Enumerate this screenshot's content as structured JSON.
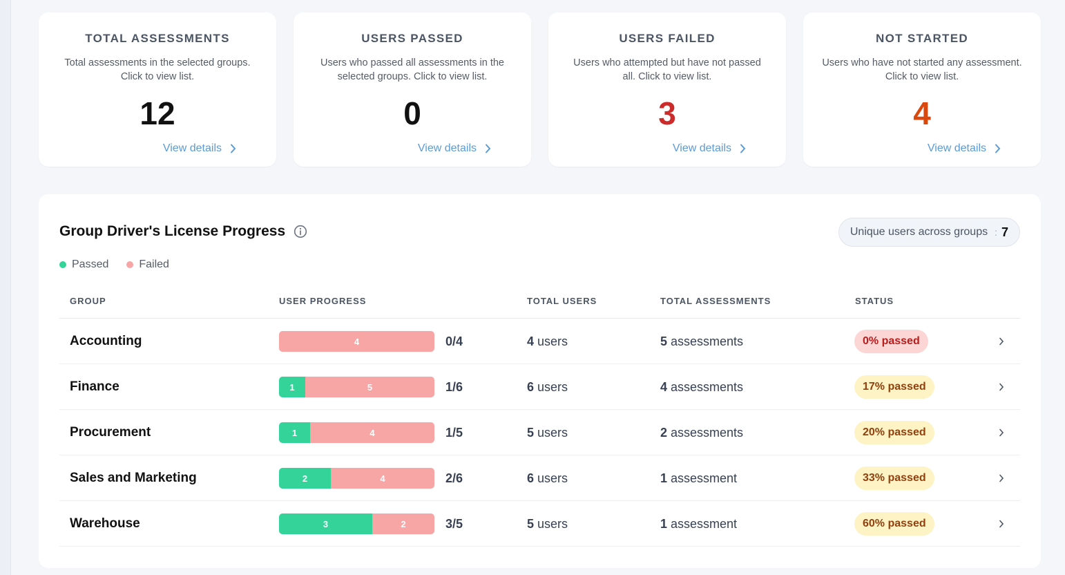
{
  "colors": {
    "accent_link": "#5b9bd5",
    "passed": "#34d399",
    "failed": "#f8a5a5",
    "value_failed": "#cc2b2b",
    "value_not_started": "#d9480f"
  },
  "cards": [
    {
      "title": "TOTAL ASSESSMENTS",
      "desc": "Total assessments in the selected groups. Click to view list.",
      "value": "12",
      "value_color": "#111111",
      "link": "View details"
    },
    {
      "title": "USERS PASSED",
      "desc": "Users who passed all assessments in the selected groups. Click to view list.",
      "value": "0",
      "value_color": "#111111",
      "link": "View details"
    },
    {
      "title": "USERS FAILED",
      "desc": "Users who attempted but have not passed all. Click to view list.",
      "value": "3",
      "value_color": "#cc2b2b",
      "link": "View details"
    },
    {
      "title": "NOT STARTED",
      "desc": "Users who have not started any assessment. Click to view list.",
      "value": "4",
      "value_color": "#d9480f",
      "link": "View details"
    }
  ],
  "panel": {
    "title": "Group Driver's License Progress",
    "info_icon": "info-circle-icon",
    "unique_label": "Unique users across groups",
    "unique_sep": ":",
    "unique_value": "7",
    "legend": [
      {
        "label": "Passed",
        "color": "#34d399"
      },
      {
        "label": "Failed",
        "color": "#f8a5a5"
      }
    ]
  },
  "table": {
    "headers": [
      "GROUP",
      "USER PROGRESS",
      "TOTAL USERS",
      "TOTAL ASSESSMENTS",
      "STATUS"
    ],
    "rows": [
      {
        "group": "Accounting",
        "passed": 0,
        "failed": 4,
        "ratio": "0/4",
        "users_num": "4",
        "users_unit": "users",
        "assess_num": "5",
        "assess_unit": "assessments",
        "status": "0% passed",
        "status_tone": "red"
      },
      {
        "group": "Finance",
        "passed": 1,
        "failed": 5,
        "ratio": "1/6",
        "users_num": "6",
        "users_unit": "users",
        "assess_num": "4",
        "assess_unit": "assessments",
        "status": "17% passed",
        "status_tone": "yellow"
      },
      {
        "group": "Procurement",
        "passed": 1,
        "failed": 4,
        "ratio": "1/5",
        "users_num": "5",
        "users_unit": "users",
        "assess_num": "2",
        "assess_unit": "assessments",
        "status": "20% passed",
        "status_tone": "yellow"
      },
      {
        "group": "Sales and Marketing",
        "passed": 2,
        "failed": 4,
        "ratio": "2/6",
        "users_num": "6",
        "users_unit": "users",
        "assess_num": "1",
        "assess_unit": "assessment",
        "status": "33% passed",
        "status_tone": "yellow"
      },
      {
        "group": "Warehouse",
        "passed": 3,
        "failed": 2,
        "ratio": "3/5",
        "users_num": "5",
        "users_unit": "users",
        "assess_num": "1",
        "assess_unit": "assessment",
        "status": "60% passed",
        "status_tone": "yellow"
      }
    ]
  }
}
